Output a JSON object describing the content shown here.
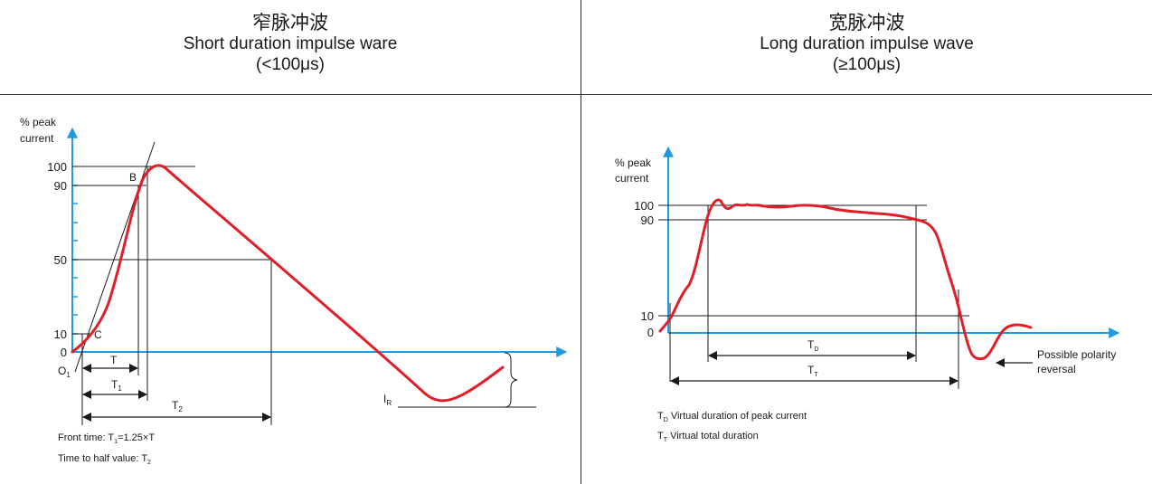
{
  "left_panel": {
    "title_cn": "窄脉冲波",
    "title_en": "Short duration impulse ware",
    "range": "(<100μs)",
    "y_axis_label_line1": "% peak",
    "y_axis_label_line2": "current",
    "tick_100": "100",
    "tick_90": "90",
    "tick_50": "50",
    "tick_10": "10",
    "tick_0": "0",
    "point_b": "B",
    "point_c": "C",
    "origin_label": "O",
    "origin_sub": "1",
    "dim_t": "T",
    "dim_t1": "T",
    "dim_t1_sub": "1",
    "dim_t2": "T",
    "dim_t2_sub": "2",
    "ir_label": "I",
    "ir_sub": "R",
    "note_front_pre": "Front time: T",
    "note_front_sub": "1",
    "note_front_post": "=1.25×T",
    "note_half_pre": "Time to half value: T",
    "note_half_sub": "2"
  },
  "right_panel": {
    "title_cn": "宽脉冲波",
    "title_en": "Long duration impulse wave",
    "range": "(≥100μs)",
    "y_axis_label_line1": "% peak",
    "y_axis_label_line2": "current",
    "tick_100": "100",
    "tick_90": "90",
    "tick_10": "10",
    "tick_0": "0",
    "dim_td": "T",
    "dim_td_sub": "D",
    "dim_tt": "T",
    "dim_tt_sub": "T",
    "polarity_line1": "Possible polarity",
    "polarity_line2": "reversal",
    "legend_td_pre": "T",
    "legend_td_sub": "D",
    "legend_td_post": " Virtual duration of peak current",
    "legend_tt_pre": "T",
    "legend_tt_sub": "T",
    "legend_tt_post": " Virtual total duration"
  },
  "colors": {
    "axis": "#1e9be0",
    "curve": "#e01e28",
    "line": "#1a1a1a"
  }
}
